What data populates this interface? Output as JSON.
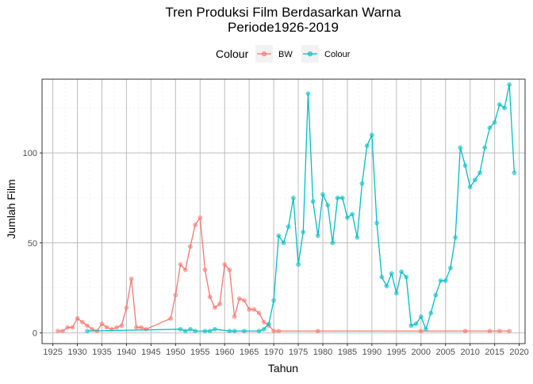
{
  "chart_data": {
    "type": "line",
    "title": "Tren Produksi Film Berdasarkan Warna",
    "subtitle": "Periode1926-2019",
    "xlabel": "Tahun",
    "ylabel": "Jumlah Film",
    "xlim": [
      1922.8,
      2021.2
    ],
    "ylim": [
      -6,
      141
    ],
    "x_ticks": [
      1925,
      1930,
      1935,
      1940,
      1945,
      1950,
      1955,
      1960,
      1965,
      1970,
      1975,
      1980,
      1985,
      1990,
      1995,
      2000,
      2005,
      2010,
      2015,
      2020
    ],
    "y_ticks": [
      0,
      50,
      100
    ],
    "grid": true,
    "legend": {
      "title": "Colour",
      "position": "top"
    },
    "series": [
      {
        "name": "BW",
        "color": "#F8766D",
        "x": [
          1926,
          1927,
          1928,
          1929,
          1930,
          1931,
          1932,
          1933,
          1934,
          1935,
          1936,
          1937,
          1938,
          1939,
          1940,
          1941,
          1942,
          1943,
          1944,
          1949,
          1950,
          1951,
          1952,
          1953,
          1954,
          1955,
          1956,
          1957,
          1958,
          1959,
          1960,
          1961,
          1962,
          1963,
          1964,
          1965,
          1966,
          1967,
          1968,
          1969,
          1970,
          1971,
          1979,
          2000,
          2009,
          2014,
          2016,
          2018
        ],
        "values": [
          1,
          1,
          3,
          3,
          8,
          6,
          4,
          2,
          1,
          5,
          3,
          2,
          3,
          4,
          14,
          30,
          3,
          3,
          2,
          8,
          21,
          38,
          35,
          48,
          60,
          64,
          35,
          20,
          14,
          16,
          38,
          35,
          9,
          19,
          18,
          13,
          13,
          11,
          6,
          4,
          1,
          1,
          1,
          1,
          1,
          1,
          1,
          1
        ]
      },
      {
        "name": "Colour",
        "color": "#00BFC4",
        "x": [
          1932,
          1951,
          1952,
          1953,
          1954,
          1956,
          1957,
          1958,
          1961,
          1962,
          1964,
          1967,
          1968,
          1969,
          1970,
          1971,
          1972,
          1973,
          1974,
          1975,
          1976,
          1977,
          1978,
          1979,
          1980,
          1981,
          1982,
          1983,
          1984,
          1985,
          1986,
          1987,
          1988,
          1989,
          1990,
          1991,
          1992,
          1993,
          1994,
          1995,
          1996,
          1997,
          1998,
          1999,
          2000,
          2001,
          2002,
          2003,
          2004,
          2005,
          2006,
          2007,
          2008,
          2009,
          2010,
          2011,
          2012,
          2013,
          2014,
          2015,
          2016,
          2017,
          2018,
          2019
        ],
        "values": [
          1,
          2,
          1,
          2,
          1,
          1,
          1,
          2,
          1,
          1,
          1,
          1,
          2,
          5,
          18,
          54,
          50,
          59,
          75,
          38,
          56,
          133,
          73,
          54,
          77,
          71,
          50,
          75,
          75,
          64,
          66,
          53,
          83,
          104,
          110,
          61,
          31,
          26,
          33,
          22,
          34,
          31,
          4,
          5,
          9,
          2,
          11,
          21,
          29,
          29,
          36,
          53,
          103,
          93,
          81,
          85,
          89,
          103,
          114,
          117,
          127,
          125,
          138,
          89
        ]
      }
    ]
  }
}
